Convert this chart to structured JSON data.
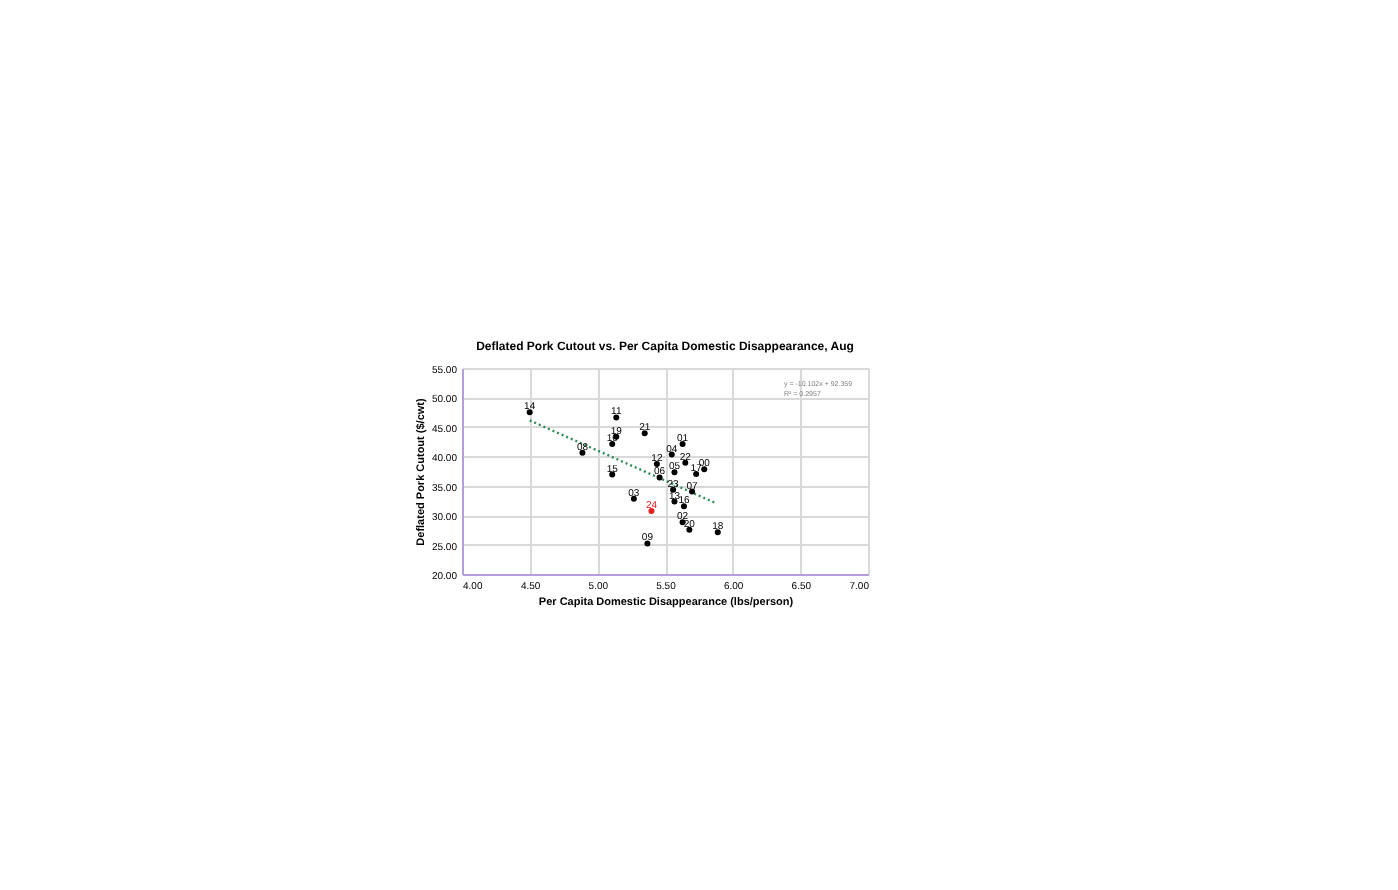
{
  "chart_data": {
    "type": "scatter",
    "title": "Deflated Pork Cutout vs. Per Capita Domestic Disappearance, Aug",
    "xlabel": "Per Capita Domestic Disappearance (lbs/person)",
    "ylabel": "Deflated Pork Cutout ($/cwt)",
    "xlim": [
      4.0,
      7.0
    ],
    "xticks": [
      {
        "value": 4.0,
        "label": "4.00"
      },
      {
        "value": 4.5,
        "label": "4.50"
      },
      {
        "value": 5.0,
        "label": "5.00"
      },
      {
        "value": 5.5,
        "label": "5.50"
      },
      {
        "value": 6.0,
        "label": "6.00"
      },
      {
        "value": 6.5,
        "label": "6.50"
      },
      {
        "value": 7.0,
        "label": "7.00"
      }
    ],
    "ylim": [
      20,
      55
    ],
    "yticks": [
      {
        "value": 20,
        "label": "20.00"
      },
      {
        "value": 25,
        "label": "25.00"
      },
      {
        "value": 30,
        "label": "30.00"
      },
      {
        "value": 35,
        "label": "35.00"
      },
      {
        "value": 40,
        "label": "40.00"
      },
      {
        "value": 45,
        "label": "45.00"
      },
      {
        "value": 50,
        "label": "50.00"
      },
      {
        "value": 55,
        "label": "55.00"
      }
    ],
    "grid": true,
    "series": [
      {
        "marker": "circle",
        "x": [
          4.5,
          5.14,
          5.14,
          5.11,
          5.35,
          4.89,
          5.63,
          5.55,
          5.65,
          5.44,
          5.57,
          5.73,
          5.79,
          5.11,
          5.46,
          5.56,
          5.7,
          5.27,
          5.57,
          5.64,
          5.4,
          5.63,
          5.68,
          5.89,
          5.37
        ],
        "values": [
          47.5,
          46.6,
          43.3,
          42.1,
          43.9,
          40.6,
          42.1,
          40.3,
          38.9,
          38.7,
          37.3,
          37.0,
          37.8,
          36.9,
          36.4,
          34.3,
          34.0,
          32.8,
          32.3,
          31.5,
          30.7,
          28.8,
          27.5,
          27.1,
          25.2
        ],
        "colors": [
          "#000000",
          "#000000",
          "#000000",
          "#000000",
          "#000000",
          "#000000",
          "#000000",
          "#000000",
          "#000000",
          "#000000",
          "#000000",
          "#000000",
          "#000000",
          "#000000",
          "#000000",
          "#000000",
          "#000000",
          "#000000",
          "#000000",
          "#000000",
          "#e02020",
          "#000000",
          "#000000",
          "#000000",
          "#000000"
        ]
      },
      {
        "type": "line",
        "color": "#2e8b57",
        "line_style": "dotted",
        "x": [
          4.5,
          5.88
        ],
        "values": [
          46.1,
          32.0
        ]
      }
    ],
    "annotations": [
      "y = -10.102x + 92.359",
      "R² = 0.2957",
      {
        "text": "14",
        "x": 4.5,
        "y": 47.5
      },
      {
        "text": "11",
        "x": 5.14,
        "y": 46.6
      },
      {
        "text": "19",
        "x": 5.14,
        "y": 43.3
      },
      {
        "text": "10",
        "x": 5.11,
        "y": 42.1
      },
      {
        "text": "21",
        "x": 5.35,
        "y": 43.9
      },
      {
        "text": "08",
        "x": 4.89,
        "y": 40.6
      },
      {
        "text": "01",
        "x": 5.63,
        "y": 42.1
      },
      {
        "text": "04",
        "x": 5.55,
        "y": 40.3
      },
      {
        "text": "22",
        "x": 5.65,
        "y": 38.9
      },
      {
        "text": "12",
        "x": 5.44,
        "y": 38.7
      },
      {
        "text": "05",
        "x": 5.57,
        "y": 37.3
      },
      {
        "text": "17",
        "x": 5.73,
        "y": 37.0
      },
      {
        "text": "00",
        "x": 5.79,
        "y": 37.8
      },
      {
        "text": "15",
        "x": 5.11,
        "y": 36.9
      },
      {
        "text": "06",
        "x": 5.46,
        "y": 36.4
      },
      {
        "text": "23",
        "x": 5.56,
        "y": 34.3
      },
      {
        "text": "07",
        "x": 5.7,
        "y": 34.0
      },
      {
        "text": "03",
        "x": 5.27,
        "y": 32.8
      },
      {
        "text": "13",
        "x": 5.57,
        "y": 32.3
      },
      {
        "text": "16",
        "x": 5.64,
        "y": 31.5
      },
      {
        "text": "24",
        "x": 5.4,
        "y": 30.7
      },
      {
        "text": "02",
        "x": 5.63,
        "y": 28.8
      },
      {
        "text": "20",
        "x": 5.68,
        "y": 27.5
      },
      {
        "text": "18",
        "x": 5.89,
        "y": 27.1
      },
      {
        "text": "09",
        "x": 5.37,
        "y": 25.2
      }
    ]
  }
}
